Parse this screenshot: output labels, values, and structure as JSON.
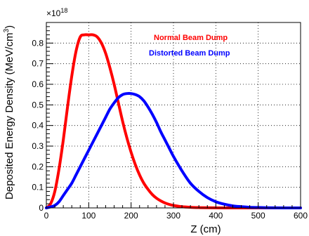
{
  "chart_data": {
    "type": "line",
    "title": "",
    "xlabel": "Z (cm)",
    "ylabel_main": "Deposited Energy Density (MeV/cm",
    "ylabel_sup": "3",
    "ylabel_close": ")",
    "multiplier_base": "×10",
    "multiplier_exp": "18",
    "xlim": [
      0,
      600
    ],
    "ylim": [
      0,
      0.9
    ],
    "x_ticks": [
      0,
      100,
      200,
      300,
      400,
      500,
      600
    ],
    "x_tick_labels": [
      "0",
      "100",
      "200",
      "300",
      "400",
      "500",
      "600"
    ],
    "y_ticks": [
      0,
      0.1,
      0.2,
      0.3,
      0.4,
      0.5,
      0.6,
      0.7,
      0.8
    ],
    "y_tick_labels": [
      "0",
      "0.1",
      "0.2",
      "0.3",
      "0.4",
      "0.5",
      "0.6",
      "0.7",
      "0.8"
    ],
    "grid": true,
    "legend_position": "top-right",
    "x": [
      0,
      10,
      20,
      30,
      40,
      50,
      60,
      70,
      80,
      90,
      100,
      110,
      120,
      130,
      140,
      150,
      160,
      170,
      180,
      190,
      200,
      210,
      220,
      230,
      240,
      250,
      260,
      270,
      280,
      290,
      300,
      320,
      340,
      360,
      380,
      400,
      420,
      440,
      460,
      480,
      500,
      520,
      540,
      560,
      580,
      600
    ],
    "series": [
      {
        "name": "Normal Beam Dump",
        "color": "#ff0000",
        "values": [
          0,
          0.02,
          0.08,
          0.19,
          0.33,
          0.49,
          0.64,
          0.76,
          0.83,
          0.84,
          0.84,
          0.84,
          0.83,
          0.8,
          0.75,
          0.68,
          0.6,
          0.51,
          0.42,
          0.34,
          0.27,
          0.21,
          0.16,
          0.12,
          0.09,
          0.065,
          0.047,
          0.034,
          0.024,
          0.017,
          0.012,
          0.006,
          0.003,
          0.0015,
          0.0007,
          0.0003,
          0.0001,
          0,
          0,
          0,
          0,
          0,
          0,
          0,
          0,
          0
        ]
      },
      {
        "name": "Distorted Beam Dump",
        "color": "#0000ff",
        "values": [
          0,
          0.005,
          0.012,
          0.03,
          0.06,
          0.09,
          0.12,
          0.16,
          0.2,
          0.24,
          0.28,
          0.32,
          0.36,
          0.4,
          0.44,
          0.48,
          0.51,
          0.535,
          0.55,
          0.555,
          0.555,
          0.55,
          0.54,
          0.52,
          0.49,
          0.455,
          0.415,
          0.37,
          0.33,
          0.29,
          0.25,
          0.18,
          0.12,
          0.08,
          0.05,
          0.03,
          0.018,
          0.01,
          0.006,
          0.003,
          0.002,
          0.001,
          0.0005,
          0,
          0,
          0
        ]
      }
    ]
  }
}
